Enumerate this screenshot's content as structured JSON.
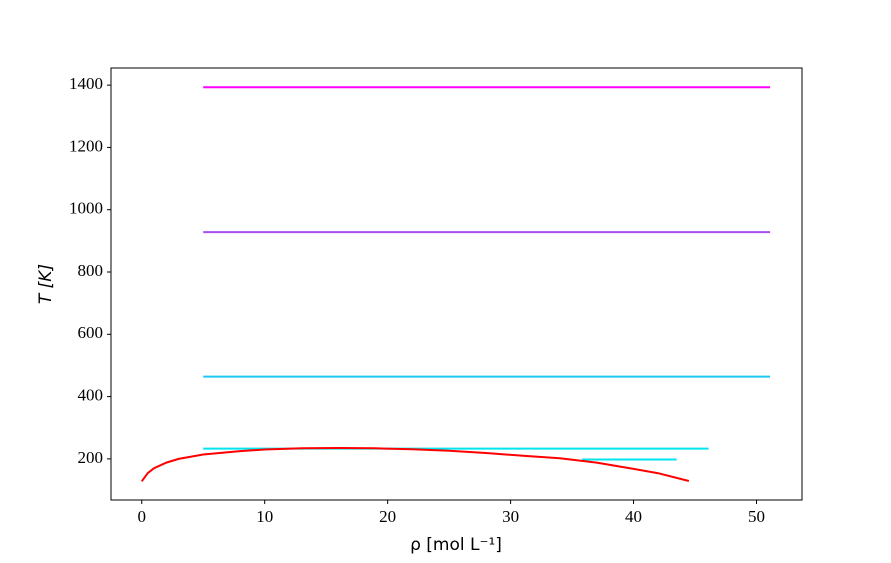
{
  "chart_data": {
    "type": "line",
    "x_label": "ρ [mol L⁻¹]",
    "y_label": "T [K]",
    "xlim": [
      -2.5,
      53.7
    ],
    "ylim": [
      68,
      1455
    ],
    "xticks": [
      0,
      10,
      20,
      30,
      40,
      50
    ],
    "yticks": [
      200,
      400,
      600,
      800,
      1000,
      1200,
      1400
    ],
    "series": [
      {
        "color": "#ff00ff",
        "x": [
          5,
          51.1
        ],
        "values": [
          1393,
          1393
        ]
      },
      {
        "color": "#a64ff0",
        "x": [
          5,
          51.1
        ],
        "values": [
          928,
          928
        ]
      },
      {
        "color": "#1ec8f5",
        "x": [
          5,
          51.1
        ],
        "values": [
          464,
          464
        ]
      },
      {
        "color": "#00e5ee",
        "x": [
          5,
          46.1
        ],
        "values": [
          233,
          233
        ]
      },
      {
        "color": "#00e5ee",
        "x": [
          35.8,
          43.5
        ],
        "values": [
          198,
          198
        ]
      },
      {
        "color": "#ff0000",
        "x": [
          0,
          0.5,
          1,
          2,
          3,
          5,
          8,
          10,
          13,
          16,
          19,
          22,
          25,
          28,
          31,
          34,
          37,
          40,
          42,
          44.5
        ],
        "values": [
          128,
          155,
          170,
          188,
          200,
          214,
          225,
          230,
          234,
          235,
          234,
          231,
          226,
          219,
          210,
          202,
          188,
          168,
          154,
          129
        ]
      }
    ]
  }
}
